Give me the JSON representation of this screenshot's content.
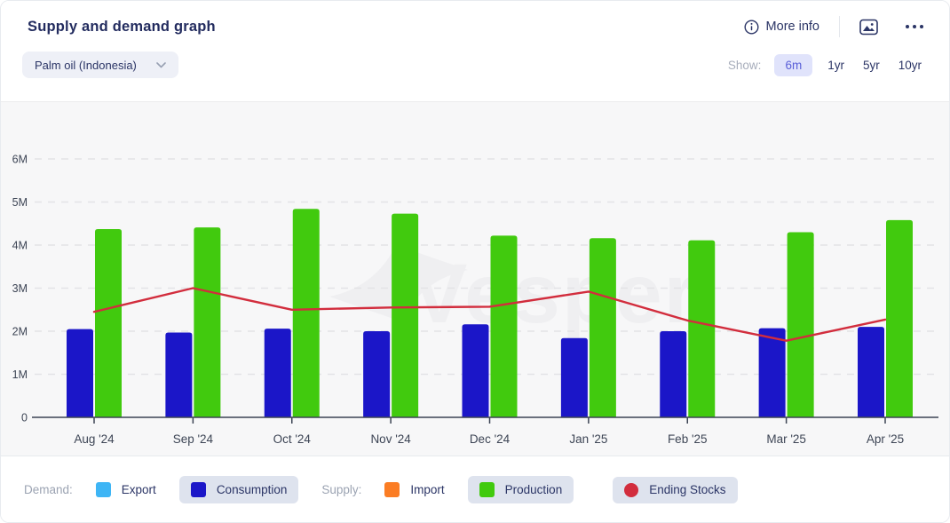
{
  "header": {
    "title": "Supply and demand graph",
    "more_info_label": "More info",
    "commodity_selector": "Palm oil (Indonesia)",
    "show_label": "Show:",
    "ranges": [
      {
        "label": "6m",
        "selected": true
      },
      {
        "label": "1yr",
        "selected": false
      },
      {
        "label": "5yr",
        "selected": false
      },
      {
        "label": "10yr",
        "selected": false
      }
    ]
  },
  "chart_data": {
    "type": "bar",
    "categories": [
      "Aug '24",
      "Sep '24",
      "Oct '24",
      "Nov '24",
      "Dec '24",
      "Jan '25",
      "Feb '25",
      "Mar '25",
      "Apr '25"
    ],
    "series": [
      {
        "name": "Consumption",
        "type": "bar",
        "color": "#1b16c8",
        "values": [
          2.05,
          1.97,
          2.06,
          2.0,
          2.16,
          1.84,
          2.0,
          2.07,
          2.1
        ]
      },
      {
        "name": "Production",
        "type": "bar",
        "color": "#41ca0e",
        "values": [
          4.37,
          4.41,
          4.84,
          4.73,
          4.22,
          4.16,
          4.11,
          4.3,
          4.58
        ]
      },
      {
        "name": "Ending Stocks",
        "type": "line",
        "color": "#d22d3d",
        "values": [
          2.45,
          3.0,
          2.5,
          2.55,
          2.57,
          2.92,
          2.25,
          1.78,
          2.27
        ]
      }
    ],
    "ylabel_ticks": [
      "0",
      "1M",
      "2M",
      "3M",
      "4M",
      "5M",
      "6M"
    ],
    "ylim_millions": [
      0,
      6.5
    ],
    "grid": "dashed-horizontal",
    "watermark": "Vesper",
    "watermark_color": "#efeff1",
    "axis_color": "#3c4454",
    "gridline_color": "#e3e3e6",
    "tick_label_color": "#3d4555"
  },
  "legend": {
    "demand_label": "Demand:",
    "supply_label": "Supply:",
    "items": [
      {
        "label": "Export",
        "color": "#3eb5f5",
        "shape": "square",
        "active": false
      },
      {
        "label": "Consumption",
        "color": "#1b16c8",
        "shape": "square",
        "active": true
      },
      {
        "label": "Import",
        "color": "#fb7d24",
        "shape": "square",
        "active": false
      },
      {
        "label": "Production",
        "color": "#41ca0e",
        "shape": "square",
        "active": true
      },
      {
        "label": "Ending Stocks",
        "color": "#d22d3d",
        "shape": "circle",
        "active": true
      }
    ]
  }
}
